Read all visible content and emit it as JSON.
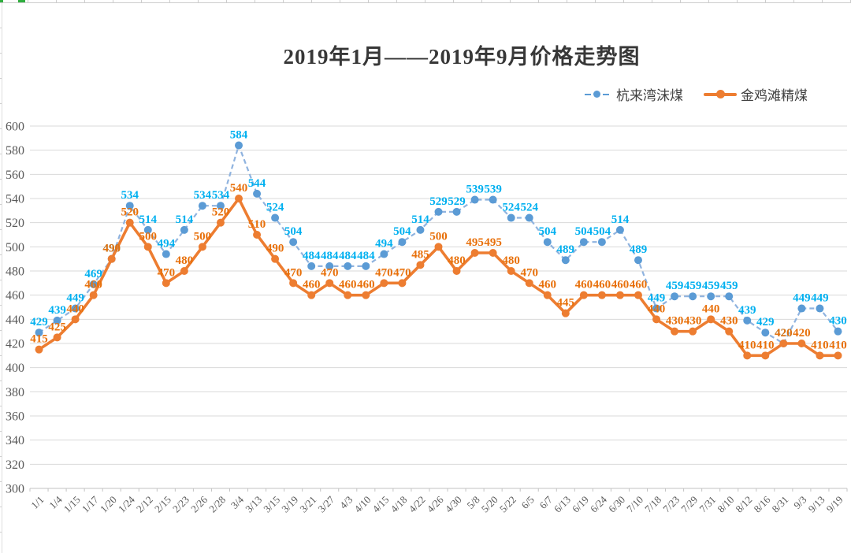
{
  "chart_data": {
    "type": "line",
    "title": "2019年1月——2019年9月价格走势图",
    "categories": [
      "1/1",
      "1/4",
      "1/15",
      "1/17",
      "1/20",
      "1/24",
      "2/12",
      "2/15",
      "2/23",
      "2/26",
      "2/28",
      "3/4",
      "3/13",
      "3/15",
      "3/19",
      "3/21",
      "3/27",
      "4/3",
      "4/10",
      "4/15",
      "4/18",
      "4/22",
      "4/26",
      "4/30",
      "5/8",
      "5/20",
      "5/22",
      "6/5",
      "6/7",
      "6/13",
      "6/19",
      "6/24",
      "6/30",
      "7/10",
      "7/18",
      "7/23",
      "7/29",
      "7/31",
      "8/10",
      "8/12",
      "8/16",
      "8/31",
      "9/3",
      "9/13",
      "9/19"
    ],
    "series": [
      {
        "name": "杭来湾沫煤",
        "style": "dashed",
        "line_color": "#8FB3DF",
        "marker_color": "#5B9BD5",
        "label_color": "#00B0F0",
        "values": [
          429,
          439,
          449,
          469,
          490,
          534,
          514,
          494,
          514,
          534,
          534,
          584,
          544,
          524,
          504,
          484,
          484,
          484,
          484,
          494,
          504,
          514,
          529,
          529,
          539,
          539,
          524,
          524,
          504,
          489,
          504,
          504,
          514,
          489,
          449,
          459,
          459,
          459,
          459,
          439,
          429,
          420,
          449,
          449,
          430
        ]
      },
      {
        "name": "金鸡滩精煤",
        "style": "solid",
        "line_color": "#ED7D31",
        "marker_color": "#ED7D31",
        "label_color": "#E8700A",
        "values": [
          415,
          425,
          440,
          460,
          490,
          520,
          500,
          470,
          480,
          500,
          520,
          540,
          510,
          490,
          470,
          460,
          470,
          460,
          460,
          470,
          470,
          485,
          500,
          480,
          495,
          495,
          480,
          470,
          460,
          445,
          460,
          460,
          460,
          460,
          440,
          430,
          430,
          440,
          430,
          410,
          410,
          420,
          420,
          410,
          410
        ]
      }
    ],
    "xlabel": "",
    "ylabel": "",
    "ylim": [
      300,
      600
    ],
    "ytick_step": 20,
    "grid": true,
    "grid_color": "#D9D9D9",
    "axis_text_color": "#595959",
    "legend_position": "top-right",
    "data_labels": true
  }
}
